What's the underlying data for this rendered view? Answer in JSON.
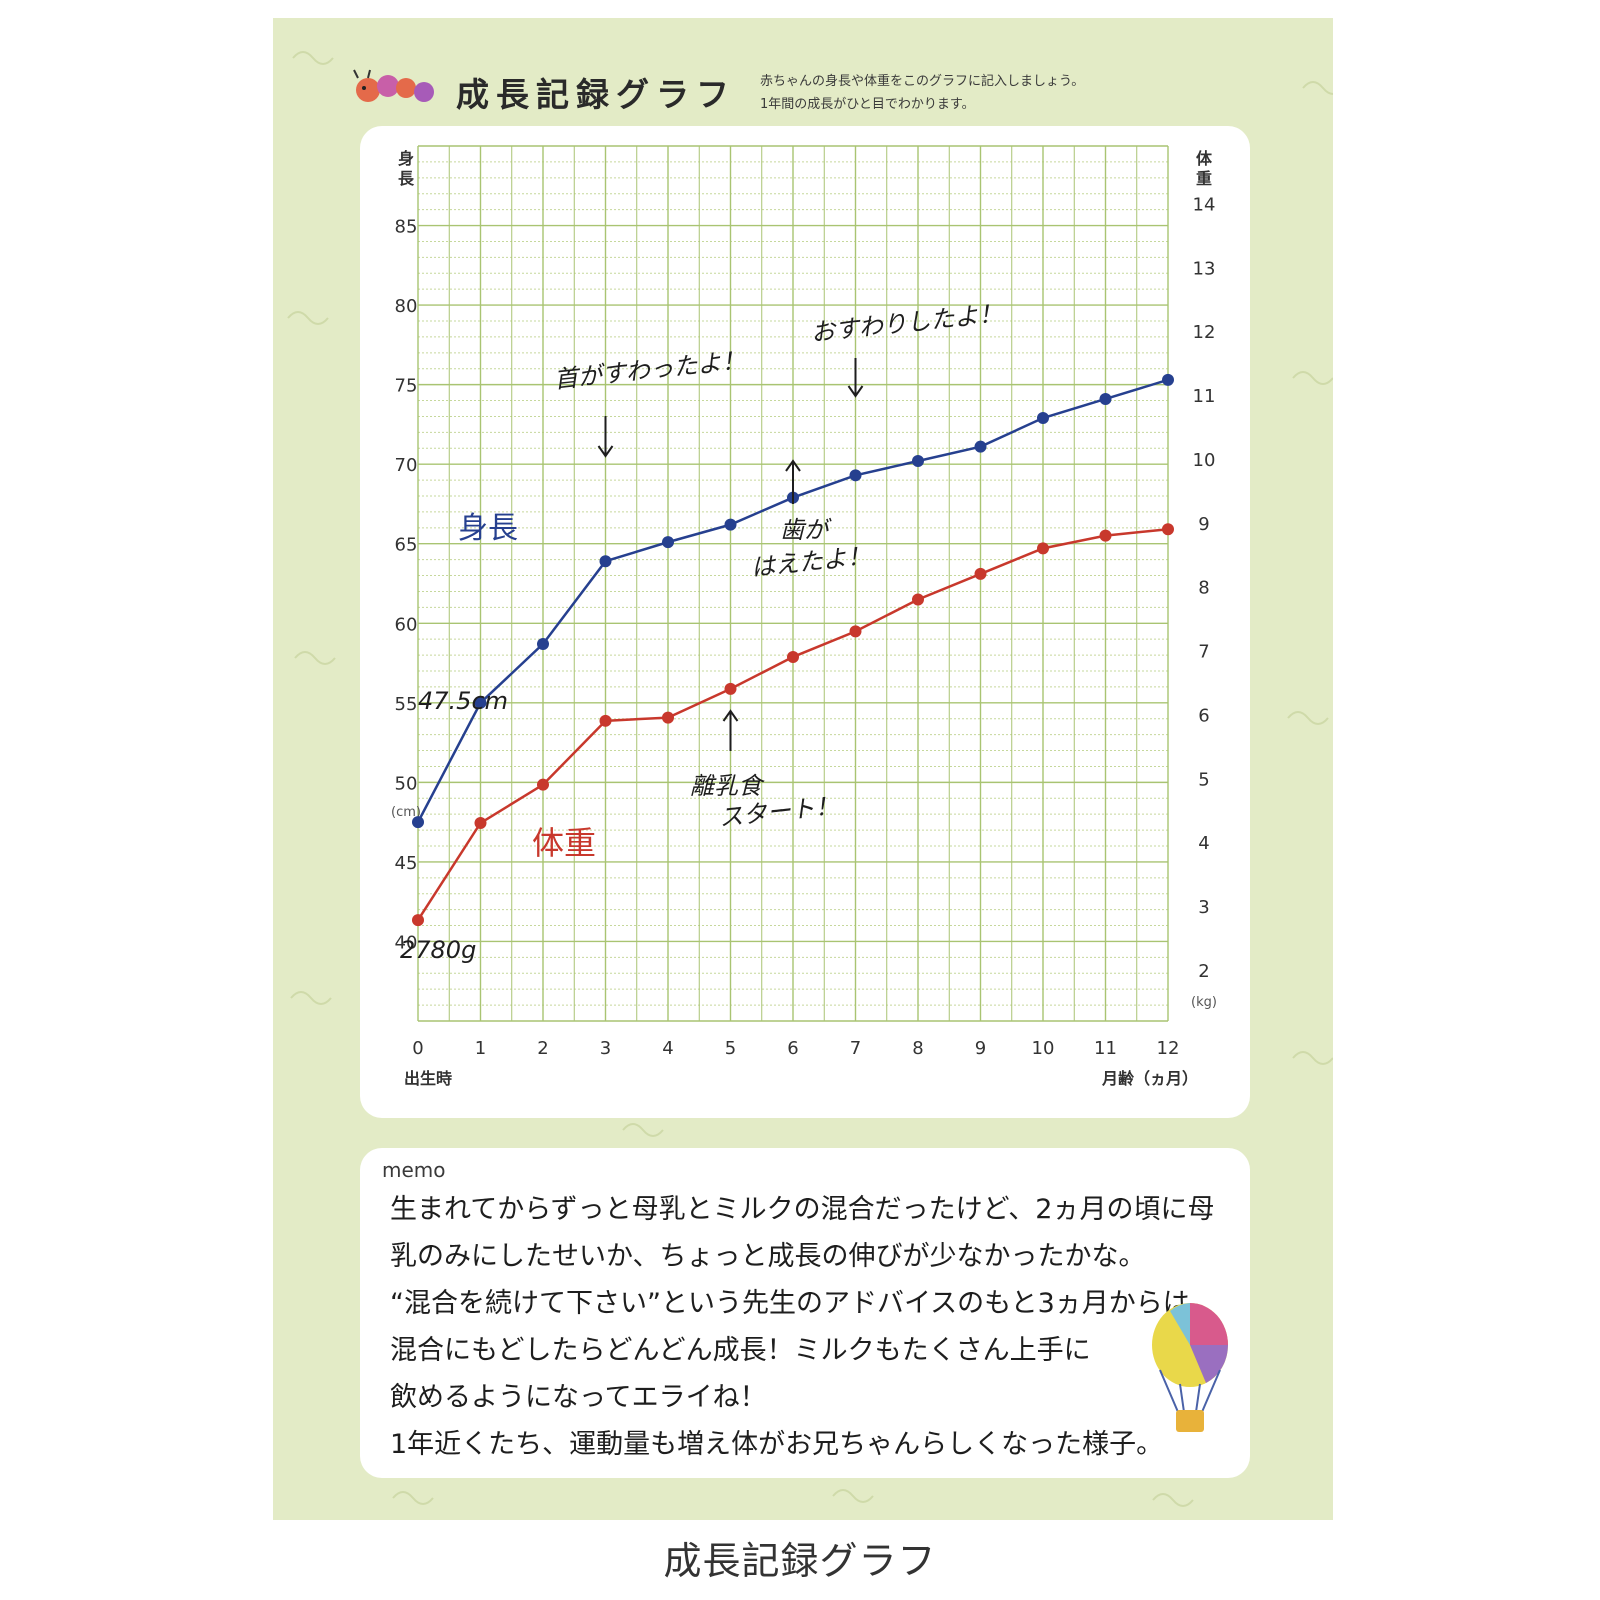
{
  "header": {
    "title": "成長記録グラフ",
    "desc_line1": "赤ちゃんの身長や体重をこのグラフに記入しましょう。",
    "desc_line2": "1年間の成長がひと目でわかります。"
  },
  "chart_data": {
    "type": "line",
    "x": [
      0,
      1,
      2,
      3,
      4,
      5,
      6,
      7,
      8,
      9,
      10,
      11,
      12
    ],
    "x_tick_labels": [
      "0",
      "1",
      "2",
      "3",
      "4",
      "5",
      "6",
      "7",
      "8",
      "9",
      "10",
      "11",
      "12"
    ],
    "x_start_label": "出生時",
    "xlabel": "月齢（ヵ月）",
    "ylabel_left": "身長",
    "ylabel_left_unit": "(cm)",
    "ylim_left": [
      35,
      90
    ],
    "yticks_left": [
      40,
      45,
      50,
      55,
      60,
      65,
      70,
      75,
      80,
      85
    ],
    "ylabel_right": "体重",
    "ylabel_right_unit": "(kg)",
    "ylim_right": [
      1.2,
      14.9
    ],
    "yticks_right": [
      2,
      3,
      4,
      5,
      6,
      7,
      8,
      9,
      10,
      11,
      12,
      13,
      14
    ],
    "grid": true,
    "series": [
      {
        "name": "身長",
        "axis": "left",
        "color": "#26408f",
        "values": [
          47.5,
          55,
          58.7,
          63.9,
          65.1,
          66.2,
          67.9,
          69.3,
          70.2,
          71.1,
          72.9,
          74.1,
          75.3
        ]
      },
      {
        "name": "体重",
        "axis": "right",
        "color": "#c8382c",
        "values": [
          2.78,
          4.3,
          4.9,
          5.9,
          5.95,
          6.4,
          6.9,
          7.3,
          7.8,
          8.2,
          8.6,
          8.8,
          8.9
        ]
      }
    ],
    "annotations": {
      "height_start": "47.5cm",
      "weight_start": "2780g",
      "neck": "首がすわったよ！",
      "sit": "おすわりしたよ！",
      "teeth_1": "歯が",
      "teeth_2": "はえたよ！",
      "food_1": "離乳食",
      "food_2": "スタート！"
    }
  },
  "memo": {
    "label": "memo",
    "lines": [
      "生まれてからずっと母乳とミルクの混合だったけど、2ヵ月の頃に母",
      "乳のみにしたせいか、ちょっと成長の伸びが少なかったかな。",
      "“混合を続けて下さい”という先生のアドバイスのもと3ヵ月からは",
      "混合にもどしたらどんどん成長！ミルクもたくさん上手に",
      "飲めるようになってエライね！",
      "1年近くたち、運動量も増え体がお兄ちゃんらしくなった様子。"
    ]
  },
  "caption": "成長記録グラフ"
}
